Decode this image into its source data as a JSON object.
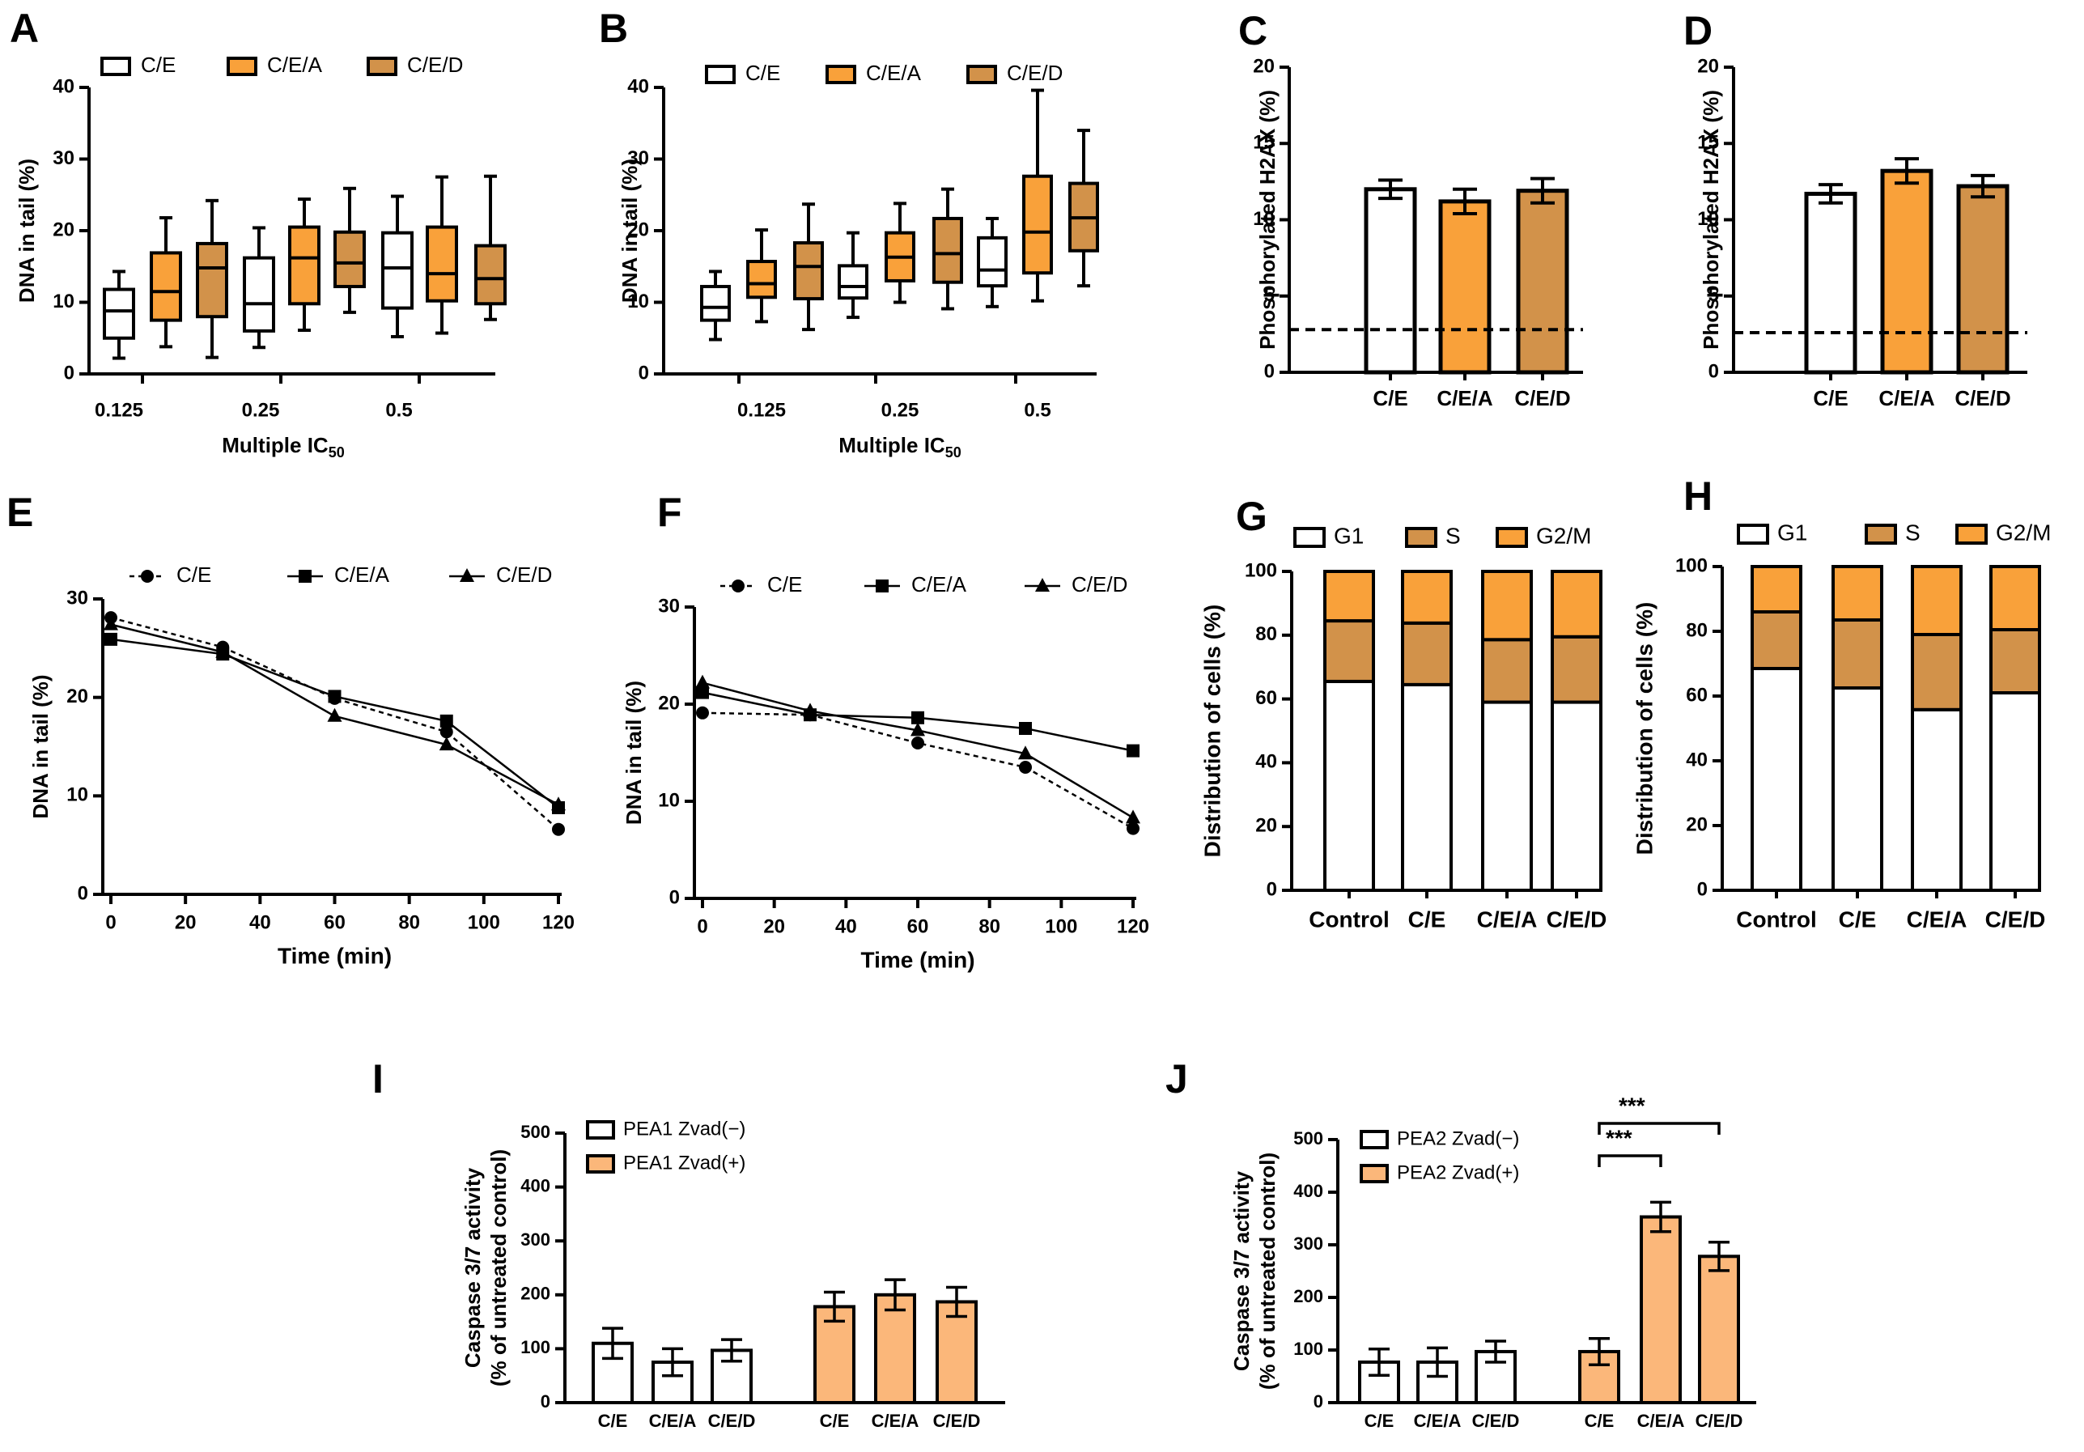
{
  "colors": {
    "white": "#ffffff",
    "orange": "#f9a13a",
    "tan": "#d2924a",
    "light_orange": "#fbb77a",
    "ink": "#000000"
  },
  "chart_data": [
    {
      "panel": "A",
      "type": "box",
      "ylabel": "DNA in tail (%)",
      "xlabel": "Multiple IC",
      "xlabel_sub": "50",
      "ylim": [
        0,
        40
      ],
      "yticks": [
        0,
        10,
        20,
        30,
        40
      ],
      "categories": [
        "0.125",
        "0.25",
        "0.5"
      ],
      "legend": [
        {
          "label": "C/E",
          "color": "#ffffff"
        },
        {
          "label": "C/E/A",
          "color": "#f9a13a"
        },
        {
          "label": "C/E/D",
          "color": "#d2924a"
        }
      ],
      "boxes": [
        {
          "group": "0.125",
          "series": "C/E",
          "min": 2.2,
          "q1": 5.0,
          "median": 8.8,
          "q3": 11.8,
          "max": 14.3
        },
        {
          "group": "0.125",
          "series": "C/E/A",
          "min": 3.8,
          "q1": 7.5,
          "median": 11.5,
          "q3": 16.9,
          "max": 21.8
        },
        {
          "group": "0.125",
          "series": "C/E/D",
          "min": 2.3,
          "q1": 8.0,
          "median": 14.8,
          "q3": 18.2,
          "max": 24.2
        },
        {
          "group": "0.25",
          "series": "C/E",
          "min": 3.7,
          "q1": 6.0,
          "median": 9.8,
          "q3": 16.2,
          "max": 20.4
        },
        {
          "group": "0.25",
          "series": "C/E/A",
          "min": 6.1,
          "q1": 9.8,
          "median": 16.2,
          "q3": 20.5,
          "max": 24.4
        },
        {
          "group": "0.25",
          "series": "C/E/D",
          "min": 8.6,
          "q1": 12.2,
          "median": 15.5,
          "q3": 19.8,
          "max": 25.9
        },
        {
          "group": "0.5",
          "series": "C/E",
          "min": 5.2,
          "q1": 9.2,
          "median": 14.8,
          "q3": 19.7,
          "max": 24.8
        },
        {
          "group": "0.5",
          "series": "C/E/A",
          "min": 5.7,
          "q1": 10.2,
          "median": 14.0,
          "q3": 20.5,
          "max": 27.5
        },
        {
          "group": "0.5",
          "series": "C/E/D",
          "min": 7.6,
          "q1": 9.8,
          "median": 13.3,
          "q3": 17.9,
          "max": 27.6
        }
      ]
    },
    {
      "panel": "B",
      "type": "box",
      "ylabel": "DNA in tail (%)",
      "xlabel": "Multiple IC",
      "xlabel_sub": "50",
      "ylim": [
        0,
        40
      ],
      "yticks": [
        0,
        10,
        20,
        30,
        40
      ],
      "categories": [
        "0.125",
        "0.25",
        "0.5"
      ],
      "legend": [
        {
          "label": "C/E",
          "color": "#ffffff"
        },
        {
          "label": "C/E/A",
          "color": "#f9a13a"
        },
        {
          "label": "C/E/D",
          "color": "#d2924a"
        }
      ],
      "boxes": [
        {
          "group": "0.125",
          "series": "C/E",
          "min": 4.8,
          "q1": 7.5,
          "median": 9.3,
          "q3": 12.2,
          "max": 14.3
        },
        {
          "group": "0.125",
          "series": "C/E/A",
          "min": 7.3,
          "q1": 10.7,
          "median": 12.6,
          "q3": 15.7,
          "max": 20.1
        },
        {
          "group": "0.125",
          "series": "C/E/D",
          "min": 6.2,
          "q1": 10.5,
          "median": 15.0,
          "q3": 18.3,
          "max": 23.7
        },
        {
          "group": "0.25",
          "series": "C/E",
          "min": 7.9,
          "q1": 10.6,
          "median": 12.2,
          "q3": 15.1,
          "max": 19.7
        },
        {
          "group": "0.25",
          "series": "C/E/A",
          "min": 10.0,
          "q1": 13.0,
          "median": 16.3,
          "q3": 19.7,
          "max": 23.8
        },
        {
          "group": "0.25",
          "series": "C/E/D",
          "min": 9.1,
          "q1": 12.8,
          "median": 16.8,
          "q3": 21.7,
          "max": 25.8
        },
        {
          "group": "0.5",
          "series": "C/E",
          "min": 9.4,
          "q1": 12.3,
          "median": 14.5,
          "q3": 19.0,
          "max": 21.7
        },
        {
          "group": "0.5",
          "series": "C/E/A",
          "min": 10.2,
          "q1": 14.1,
          "median": 19.8,
          "q3": 27.6,
          "max": 39.6
        },
        {
          "group": "0.5",
          "series": "C/E/D",
          "min": 12.3,
          "q1": 17.2,
          "median": 21.8,
          "q3": 26.6,
          "max": 34.0
        }
      ]
    },
    {
      "panel": "C",
      "type": "bar",
      "ylabel": "Phosphorylated H2AX (%)",
      "ylim": [
        0,
        20
      ],
      "yticks": [
        0,
        5,
        10,
        15,
        20
      ],
      "categories": [
        "C/E",
        "C/E/A",
        "C/E/D"
      ],
      "values": [
        12.0,
        11.2,
        11.9
      ],
      "errors": [
        0.6,
        0.8,
        0.8
      ],
      "fills": [
        "#ffffff",
        "#f9a13a",
        "#d2924a"
      ],
      "baseline": 2.8
    },
    {
      "panel": "D",
      "type": "bar",
      "ylabel": "Phosphorylated H2AX (%)",
      "ylim": [
        0,
        20
      ],
      "yticks": [
        0,
        5,
        10,
        15,
        20
      ],
      "categories": [
        "C/E",
        "C/E/A",
        "C/E/D"
      ],
      "values": [
        11.7,
        13.2,
        12.2
      ],
      "errors": [
        0.6,
        0.8,
        0.7
      ],
      "fills": [
        "#ffffff",
        "#f9a13a",
        "#d2924a"
      ],
      "baseline": 2.6
    },
    {
      "panel": "E",
      "type": "line",
      "xlabel": "Time (min)",
      "ylabel": "DNA in tail (%)",
      "xlim": [
        0,
        120
      ],
      "ylim": [
        0,
        30
      ],
      "xticks": [
        0,
        20,
        40,
        60,
        80,
        100,
        120
      ],
      "yticks": [
        0,
        10,
        20,
        30
      ],
      "x": [
        0,
        30,
        60,
        90,
        120
      ],
      "series": [
        {
          "name": "C/E",
          "values": [
            28.1,
            25.1,
            19.9,
            16.5,
            6.6
          ],
          "marker": "circle",
          "dashed": true
        },
        {
          "name": "C/E/A",
          "values": [
            25.9,
            24.4,
            20.1,
            17.6,
            8.8
          ],
          "marker": "square",
          "dashed": false
        },
        {
          "name": "C/E/D",
          "values": [
            27.4,
            24.6,
            18.1,
            15.2,
            9.1
          ],
          "marker": "triangle",
          "dashed": false
        }
      ]
    },
    {
      "panel": "F",
      "type": "line",
      "xlabel": "Time (min)",
      "ylabel": "DNA in tail (%)",
      "xlim": [
        0,
        120
      ],
      "ylim": [
        0,
        30
      ],
      "xticks": [
        0,
        20,
        40,
        60,
        80,
        100,
        120
      ],
      "yticks": [
        0,
        10,
        20,
        30
      ],
      "x": [
        0,
        30,
        60,
        90,
        120
      ],
      "series": [
        {
          "name": "C/E",
          "values": [
            19.1,
            18.9,
            16.0,
            13.5,
            7.2
          ],
          "marker": "circle",
          "dashed": true
        },
        {
          "name": "C/E/A",
          "values": [
            21.2,
            18.9,
            18.6,
            17.5,
            15.2
          ],
          "marker": "square",
          "dashed": false
        },
        {
          "name": "C/E/D",
          "values": [
            22.2,
            19.3,
            17.3,
            14.9,
            8.3
          ],
          "marker": "triangle",
          "dashed": false
        }
      ]
    },
    {
      "panel": "G",
      "type": "stacked-bar",
      "ylabel": "Distribution of cells (%)",
      "ylim": [
        0,
        100
      ],
      "yticks": [
        0,
        20,
        40,
        60,
        80,
        100
      ],
      "categories": [
        "Control",
        "C/E",
        "C/E/A",
        "C/E/D"
      ],
      "series": [
        {
          "name": "G1",
          "color": "#ffffff",
          "values": [
            65.5,
            64.5,
            59.0,
            59.0
          ]
        },
        {
          "name": "S",
          "color": "#d2924a",
          "values": [
            19.0,
            19.3,
            19.6,
            20.5
          ]
        },
        {
          "name": "G2/M",
          "color": "#f9a13a",
          "values": [
            15.5,
            16.2,
            21.4,
            20.5
          ]
        }
      ]
    },
    {
      "panel": "H",
      "type": "stacked-bar",
      "ylabel": "Distribution of cells (%)",
      "ylim": [
        0,
        100
      ],
      "yticks": [
        0,
        20,
        40,
        60,
        80,
        100
      ],
      "categories": [
        "Control",
        "C/E",
        "C/E/A",
        "C/E/D"
      ],
      "series": [
        {
          "name": "G1",
          "color": "#ffffff",
          "values": [
            68.5,
            62.5,
            55.8,
            61.0
          ]
        },
        {
          "name": "S",
          "color": "#d2924a",
          "values": [
            17.5,
            21.0,
            23.2,
            19.5
          ]
        },
        {
          "name": "G2/M",
          "color": "#f9a13a",
          "values": [
            14.0,
            16.5,
            21.0,
            19.5
          ]
        }
      ]
    },
    {
      "panel": "I",
      "type": "bar",
      "ylabel": "Caspase 3/7 activity",
      "ylabel2": "(% of untreated control)",
      "ylim": [
        0,
        500
      ],
      "yticks": [
        0,
        100,
        200,
        300,
        400,
        500
      ],
      "categories": [
        "C/E",
        "C/E/A",
        "C/E/D",
        "C/E",
        "C/E/A",
        "C/E/D"
      ],
      "values": [
        110,
        75,
        97,
        178,
        200,
        187
      ],
      "errors": [
        28,
        25,
        20,
        27,
        28,
        27
      ],
      "fills": [
        "#ffffff",
        "#ffffff",
        "#ffffff",
        "#fbb77a",
        "#fbb77a",
        "#fbb77a"
      ],
      "legend": [
        {
          "label": "PEA1 Zvad(−)",
          "color": "#ffffff"
        },
        {
          "label": "PEA1 Zvad(+)",
          "color": "#fbb77a"
        }
      ]
    },
    {
      "panel": "J",
      "type": "bar",
      "ylabel": "Caspase 3/7 activity",
      "ylabel2": "(% of untreated control)",
      "ylim": [
        0,
        500
      ],
      "yticks": [
        0,
        100,
        200,
        300,
        400,
        500
      ],
      "categories": [
        "C/E",
        "C/E/A",
        "C/E/D",
        "C/E",
        "C/E/A",
        "C/E/D"
      ],
      "values": [
        77,
        77,
        97,
        97,
        353,
        278
      ],
      "errors": [
        25,
        27,
        20,
        25,
        28,
        27
      ],
      "fills": [
        "#ffffff",
        "#ffffff",
        "#ffffff",
        "#fbb77a",
        "#fbb77a",
        "#fbb77a"
      ],
      "legend": [
        {
          "label": "PEA2 Zvad(−)",
          "color": "#ffffff"
        },
        {
          "label": "PEA2 Zvad(+)",
          "color": "#fbb77a"
        }
      ],
      "annotations": [
        {
          "from": "C/E",
          "to": "C/E/A",
          "text": "***"
        },
        {
          "from": "C/E",
          "to": "C/E/D",
          "text": "***"
        }
      ]
    }
  ]
}
